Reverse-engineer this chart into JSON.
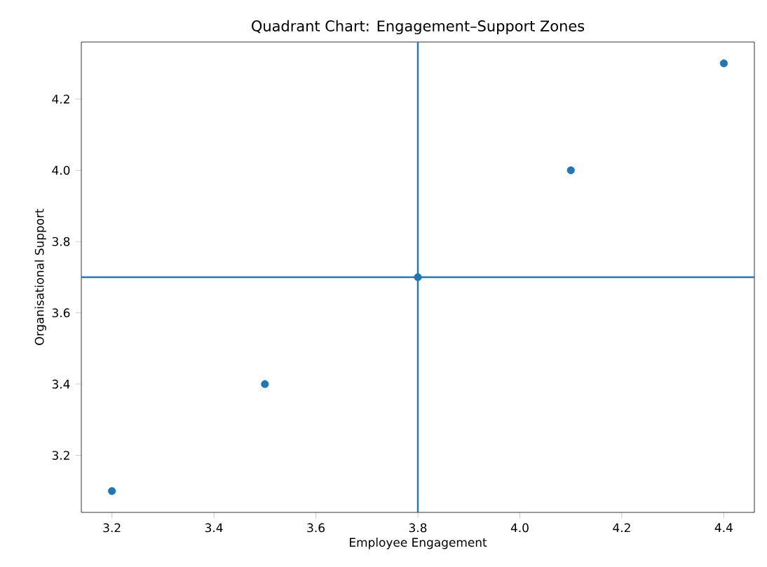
{
  "chart_data": {
    "type": "scatter",
    "title": "Quadrant Chart: Engagement–Support Zones",
    "xlabel": "Employee Engagement",
    "ylabel": "Organisational Support",
    "x": [
      3.2,
      3.5,
      3.8,
      4.1,
      4.4
    ],
    "series": [
      {
        "color": "#1f77b4",
        "values": [
          3.1,
          3.4,
          3.7,
          4.0,
          4.3
        ]
      }
    ],
    "xlim": [
      3.14,
      4.46
    ],
    "ylim": [
      3.04,
      4.36
    ],
    "xticks": [
      3.2,
      3.4,
      3.6,
      3.8,
      {
        "value": 4.0,
        "label": "4.0"
      },
      4.2,
      4.4
    ],
    "yticks": [
      3.2,
      3.4,
      3.6,
      3.8,
      {
        "value": 4.0,
        "label": "4.0"
      },
      4.2
    ],
    "ref_lines": [
      {
        "axis": "x",
        "value": 3.8,
        "color": "#1f77b4"
      },
      {
        "axis": "y",
        "value": 3.7,
        "color": "#1f77b4"
      }
    ],
    "grid": false
  }
}
